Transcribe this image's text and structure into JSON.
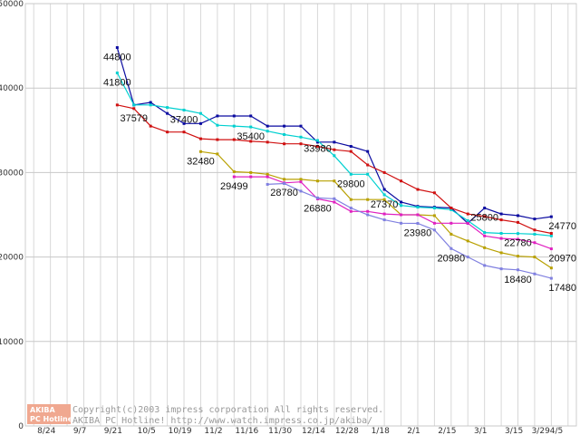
{
  "chart_data": {
    "type": "line",
    "title": "",
    "xlabel": "",
    "ylabel": "",
    "ylim": [
      0,
      50000
    ],
    "yticks": [
      0,
      10000,
      20000,
      30000,
      40000,
      50000
    ],
    "xlabels": [
      "8/24",
      "9/7",
      "9/21",
      "10/5",
      "10/19",
      "11/2",
      "11/16",
      "11/30",
      "12/14",
      "12/28",
      "1/18",
      "2/1",
      "2/15",
      "3/1",
      "3/15",
      "3/29",
      "4/5"
    ],
    "xlabel_text": [
      "8/24",
      "9/7",
      "9/21",
      "10/5",
      "10/19",
      "11/2",
      "11/16",
      "11/30",
      "12/14",
      "12/28",
      "1/18",
      "2/1",
      "2/15",
      "3/1",
      "3/15",
      "3/294/5"
    ],
    "grid": true,
    "series": [
      {
        "name": "series-navy",
        "color": "#0a0aa0",
        "points": [
          [
            5,
            44800
          ],
          [
            6,
            38000
          ],
          [
            7,
            38300
          ],
          [
            8,
            37000
          ],
          [
            9,
            35800
          ],
          [
            10,
            35800
          ],
          [
            11,
            36700
          ],
          [
            12,
            36700
          ],
          [
            13,
            36700
          ],
          [
            14,
            35500
          ],
          [
            15,
            35500
          ],
          [
            16,
            35500
          ],
          [
            17,
            33600
          ],
          [
            18,
            33600
          ],
          [
            19,
            33100
          ],
          [
            20,
            32500
          ],
          [
            21,
            28000
          ],
          [
            22,
            26500
          ],
          [
            23,
            26000
          ],
          [
            24,
            25900
          ],
          [
            25,
            25800
          ],
          [
            26,
            24000
          ],
          [
            27,
            25800
          ],
          [
            28,
            25100
          ],
          [
            29,
            24900
          ],
          [
            30,
            24500
          ],
          [
            31,
            24770
          ]
        ]
      },
      {
        "name": "series-cyan",
        "color": "#00d0d0",
        "points": [
          [
            5,
            41800
          ],
          [
            6,
            38000
          ],
          [
            7,
            38000
          ],
          [
            8,
            37700
          ],
          [
            9,
            37400
          ],
          [
            10,
            37000
          ],
          [
            11,
            35600
          ],
          [
            12,
            35500
          ],
          [
            13,
            35400
          ],
          [
            14,
            34900
          ],
          [
            15,
            34500
          ],
          [
            16,
            34200
          ],
          [
            17,
            33800
          ],
          [
            18,
            32000
          ],
          [
            19,
            29800
          ],
          [
            20,
            29800
          ],
          [
            21,
            27370
          ],
          [
            22,
            26100
          ],
          [
            23,
            25900
          ],
          [
            24,
            25800
          ],
          [
            25,
            25600
          ],
          [
            26,
            24300
          ],
          [
            27,
            22900
          ],
          [
            28,
            22800
          ],
          [
            29,
            22780
          ],
          [
            30,
            22700
          ],
          [
            31,
            22500
          ]
        ]
      },
      {
        "name": "series-red",
        "color": "#d01010",
        "points": [
          [
            5,
            38000
          ],
          [
            6,
            37579
          ],
          [
            7,
            35500
          ],
          [
            8,
            34800
          ],
          [
            9,
            34800
          ],
          [
            10,
            34000
          ],
          [
            11,
            33900
          ],
          [
            12,
            33900
          ],
          [
            13,
            33700
          ],
          [
            14,
            33600
          ],
          [
            15,
            33400
          ],
          [
            16,
            33400
          ],
          [
            17,
            33100
          ],
          [
            18,
            32700
          ],
          [
            19,
            32500
          ],
          [
            20,
            30900
          ],
          [
            21,
            30000
          ],
          [
            22,
            29000
          ],
          [
            23,
            28000
          ],
          [
            24,
            27600
          ],
          [
            25,
            25800
          ],
          [
            26,
            25100
          ],
          [
            27,
            24800
          ],
          [
            28,
            24400
          ],
          [
            29,
            24100
          ],
          [
            30,
            23200
          ],
          [
            31,
            22800
          ]
        ]
      },
      {
        "name": "series-olive",
        "color": "#b8a000",
        "points": [
          [
            10,
            32480
          ],
          [
            11,
            32200
          ],
          [
            12,
            30100
          ],
          [
            13,
            30000
          ],
          [
            14,
            29800
          ],
          [
            15,
            29200
          ],
          [
            16,
            29200
          ],
          [
            17,
            29000
          ],
          [
            18,
            29000
          ],
          [
            19,
            26800
          ],
          [
            20,
            26800
          ],
          [
            21,
            26800
          ],
          [
            22,
            25000
          ],
          [
            23,
            25000
          ],
          [
            24,
            24900
          ],
          [
            25,
            22700
          ],
          [
            26,
            21900
          ],
          [
            27,
            21100
          ],
          [
            28,
            20500
          ],
          [
            29,
            20100
          ],
          [
            30,
            20000
          ],
          [
            31,
            18700
          ]
        ]
      },
      {
        "name": "series-magenta",
        "color": "#e020c0",
        "points": [
          [
            12,
            29499
          ],
          [
            13,
            29500
          ],
          [
            14,
            29500
          ],
          [
            15,
            28780
          ],
          [
            16,
            28900
          ],
          [
            17,
            26880
          ],
          [
            18,
            26500
          ],
          [
            19,
            25400
          ],
          [
            20,
            25400
          ],
          [
            21,
            25100
          ],
          [
            22,
            25000
          ],
          [
            23,
            25000
          ],
          [
            24,
            24000
          ],
          [
            25,
            24000
          ],
          [
            26,
            24000
          ],
          [
            27,
            22500
          ],
          [
            28,
            22200
          ],
          [
            29,
            22100
          ],
          [
            30,
            21700
          ],
          [
            31,
            20970
          ]
        ]
      },
      {
        "name": "series-lavender",
        "color": "#8080e0",
        "points": [
          [
            14,
            28600
          ],
          [
            15,
            28700
          ],
          [
            16,
            27800
          ],
          [
            17,
            27000
          ],
          [
            18,
            26900
          ],
          [
            19,
            25800
          ],
          [
            20,
            25000
          ],
          [
            21,
            24400
          ],
          [
            22,
            24000
          ],
          [
            23,
            23980
          ],
          [
            24,
            23200
          ],
          [
            25,
            21000
          ],
          [
            26,
            20000
          ],
          [
            27,
            19000
          ],
          [
            28,
            18600
          ],
          [
            29,
            18480
          ],
          [
            30,
            18000
          ],
          [
            31,
            17480
          ]
        ]
      }
    ],
    "data_labels": [
      {
        "text": "44800",
        "x": 5,
        "y": 44800
      },
      {
        "text": "41800",
        "x": 5,
        "y": 41800
      },
      {
        "text": "37579",
        "x": 6,
        "y": 37579
      },
      {
        "text": "37400",
        "x": 9,
        "y": 37400
      },
      {
        "text": "35400",
        "x": 13,
        "y": 35400
      },
      {
        "text": "33980",
        "x": 17,
        "y": 33980
      },
      {
        "text": "32480",
        "x": 10,
        "y": 32480
      },
      {
        "text": "29800",
        "x": 19,
        "y": 29800
      },
      {
        "text": "29499",
        "x": 12,
        "y": 29499
      },
      {
        "text": "28780",
        "x": 15,
        "y": 28780
      },
      {
        "text": "26880",
        "x": 17,
        "y": 26880
      },
      {
        "text": "27370",
        "x": 21,
        "y": 27370
      },
      {
        "text": "23980",
        "x": 23,
        "y": 23980
      },
      {
        "text": "25800",
        "x": 27,
        "y": 25800
      },
      {
        "text": "22780",
        "x": 29,
        "y": 22780
      },
      {
        "text": "20980",
        "x": 25,
        "y": 20980
      },
      {
        "text": "24770",
        "x": 31,
        "y": 24770
      },
      {
        "text": "20970",
        "x": 31,
        "y": 20970
      },
      {
        "text": "18480",
        "x": 29,
        "y": 18480
      },
      {
        "text": "17480",
        "x": 31,
        "y": 17480
      }
    ]
  },
  "copyright": {
    "line1": "Copyright(c)2003 impress corporation All rights reserved.",
    "line2": "AKIBA PC Hotline!  http://www.watch.impress.co.jp/akiba/",
    "logo_top": "AKIBA",
    "logo_bottom": "PC Hotline!"
  }
}
